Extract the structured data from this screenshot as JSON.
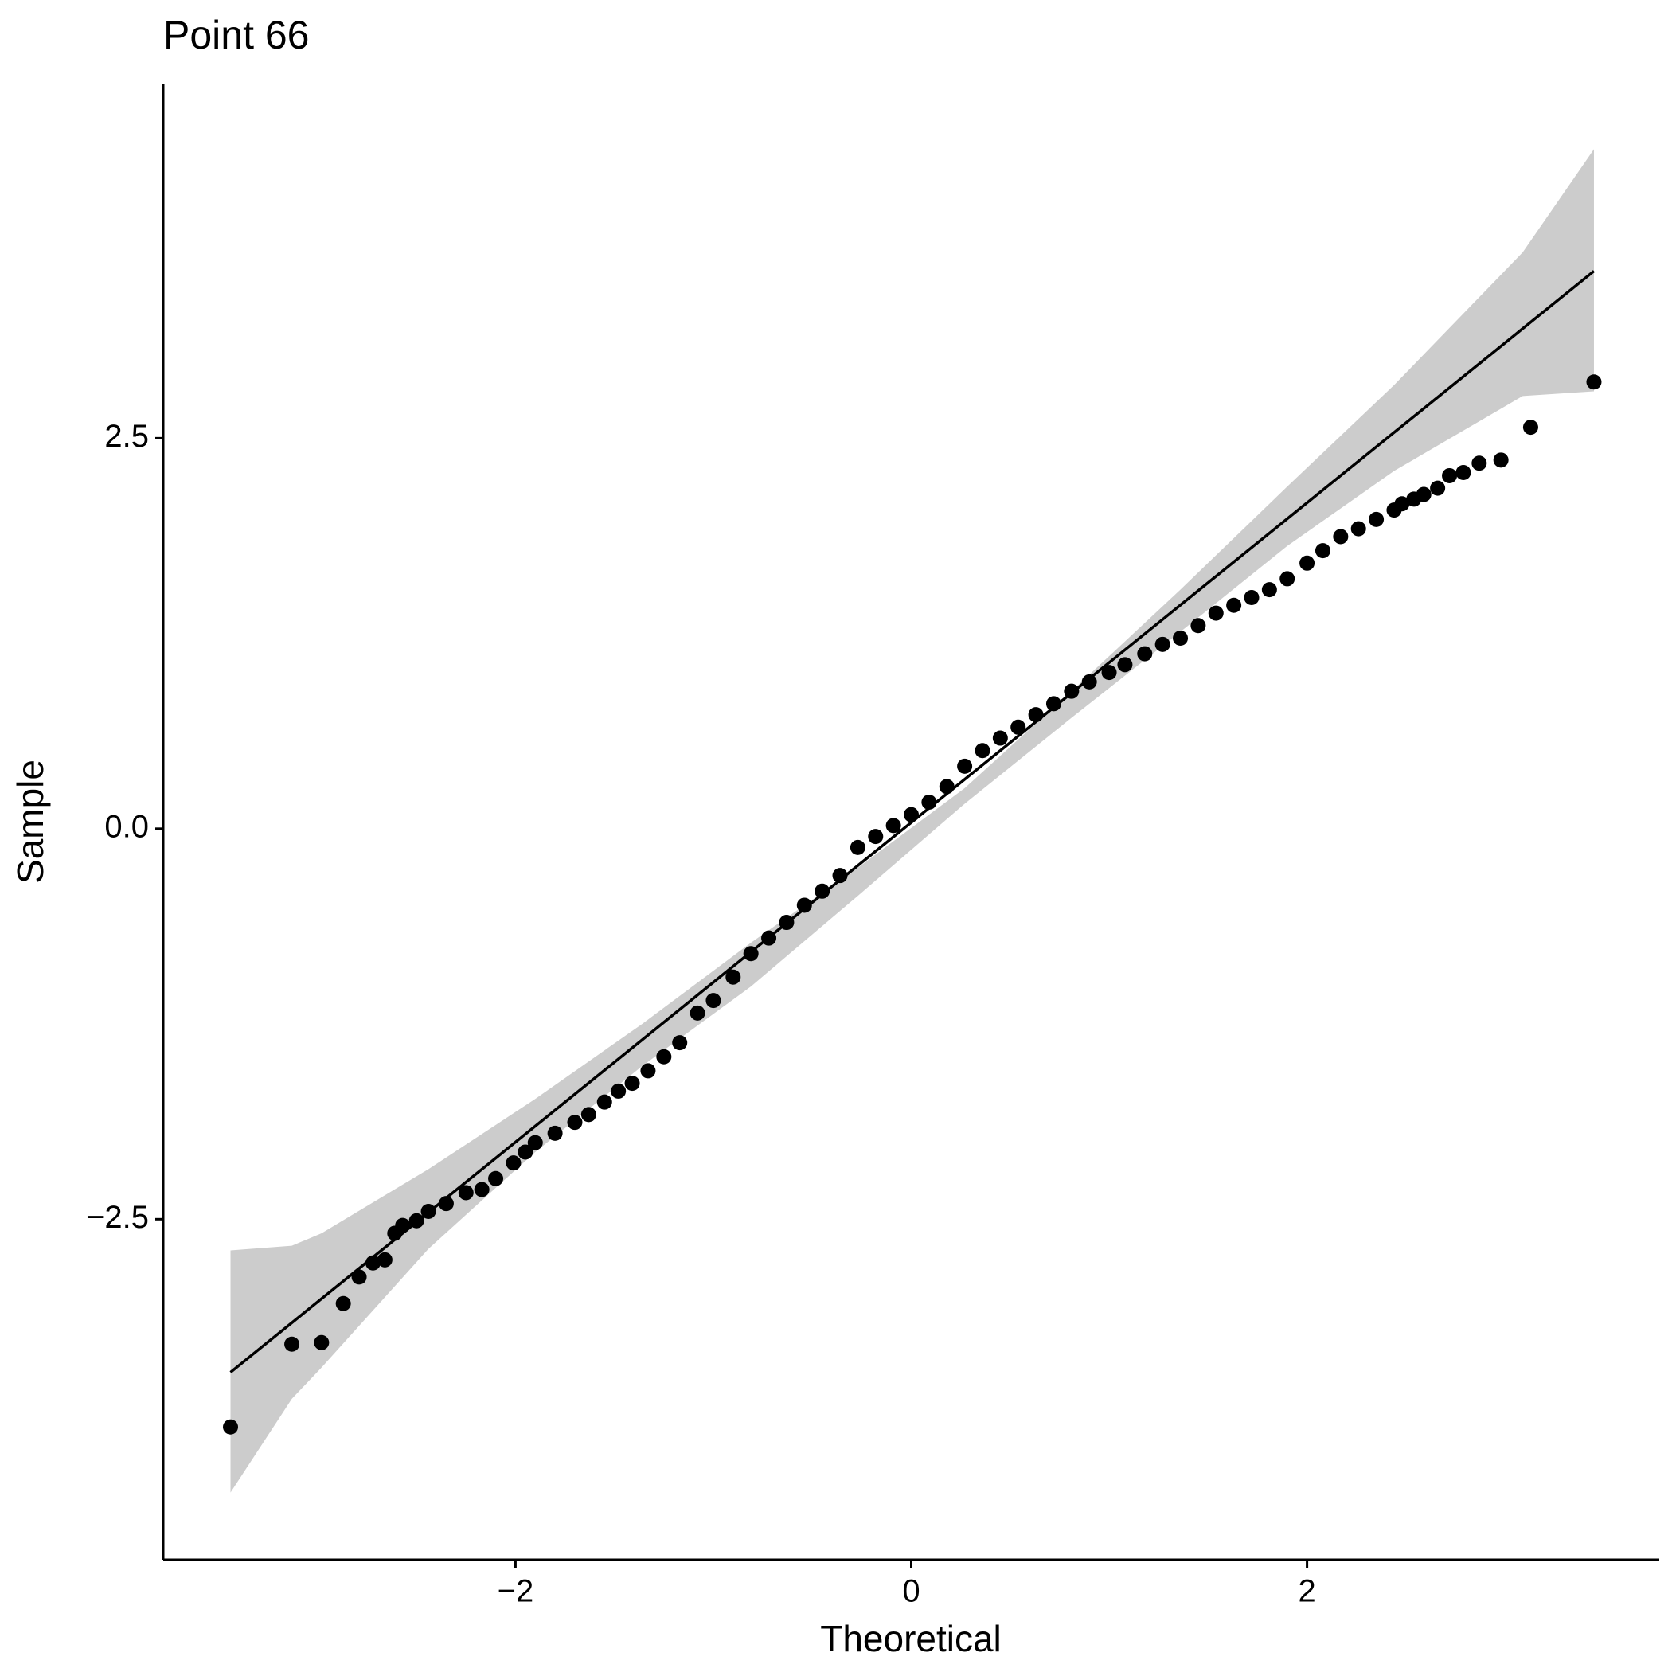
{
  "chart_data": {
    "type": "scatter",
    "title": "Point 66",
    "x_label": "Theoretical",
    "y_label": "Sample",
    "x": [
      -3.44,
      -3.13,
      -2.98,
      -2.87,
      -2.79,
      -2.72,
      -2.66,
      -2.61,
      -2.57,
      -2.5,
      -2.44,
      -2.35,
      -2.25,
      -2.17,
      -2.1,
      -2.01,
      -1.95,
      -1.9,
      -1.8,
      -1.7,
      -1.63,
      -1.55,
      -1.48,
      -1.41,
      -1.33,
      -1.25,
      -1.17,
      -1.08,
      -1.0,
      -0.9,
      -0.81,
      -0.72,
      -0.63,
      -0.54,
      -0.45,
      -0.36,
      -0.27,
      -0.18,
      -0.09,
      0,
      0.09,
      0.18,
      0.27,
      0.36,
      0.45,
      0.54,
      0.63,
      0.72,
      0.81,
      0.9,
      1.0,
      1.08,
      1.18,
      1.27,
      1.36,
      1.45,
      1.54,
      1.63,
      1.72,
      1.81,
      1.9,
      2.0,
      2.08,
      2.17,
      2.26,
      2.35,
      2.44,
      2.48,
      2.54,
      2.59,
      2.66,
      2.72,
      2.79,
      2.87,
      2.98,
      3.13,
      3.45
    ],
    "y": [
      -3.83,
      -3.3,
      -3.29,
      -3.04,
      -2.87,
      -2.78,
      -2.76,
      -2.59,
      -2.54,
      -2.51,
      -2.45,
      -2.4,
      -2.33,
      -2.31,
      -2.24,
      -2.14,
      -2.07,
      -2.01,
      -1.95,
      -1.88,
      -1.83,
      -1.75,
      -1.68,
      -1.63,
      -1.55,
      -1.46,
      -1.37,
      -1.18,
      -1.1,
      -0.95,
      -0.8,
      -0.7,
      -0.6,
      -0.49,
      -0.4,
      -0.3,
      -0.12,
      -0.05,
      0.02,
      0.09,
      0.17,
      0.27,
      0.4,
      0.5,
      0.58,
      0.65,
      0.73,
      0.8,
      0.88,
      0.94,
      1.0,
      1.05,
      1.12,
      1.18,
      1.22,
      1.3,
      1.38,
      1.43,
      1.48,
      1.53,
      1.6,
      1.7,
      1.78,
      1.87,
      1.92,
      1.98,
      2.04,
      2.08,
      2.11,
      2.14,
      2.18,
      2.26,
      2.28,
      2.34,
      2.36,
      2.57,
      2.86
    ],
    "color": "#000000",
    "reference_line": {
      "x": [
        -3.44,
        3.45
      ],
      "y": [
        -3.48,
        3.57
      ],
      "color": "#000000"
    },
    "band": {
      "x": [
        -3.44,
        -3.13,
        -2.98,
        -2.44,
        -1.9,
        -1.36,
        -0.81,
        -0.27,
        0.27,
        0.81,
        1.36,
        1.9,
        2.44,
        3.09,
        3.45
      ],
      "lower": [
        -4.25,
        -3.65,
        -3.45,
        -2.69,
        -2.07,
        -1.52,
        -1.01,
        -0.43,
        0.16,
        0.71,
        1.26,
        1.81,
        2.29,
        2.77,
        2.8
      ],
      "upper": [
        -2.7,
        -2.67,
        -2.59,
        -2.18,
        -1.73,
        -1.25,
        -0.73,
        -0.25,
        0.26,
        0.88,
        1.53,
        2.19,
        2.84,
        3.69,
        4.35
      ],
      "color": "#cccccc"
    },
    "xlim": [
      -3.78,
      3.78
    ],
    "ylim": [
      -4.68,
      4.77
    ],
    "xticks": [
      {
        "value": -2,
        "label": "−2"
      },
      0,
      2
    ],
    "yticks": [
      {
        "value": -2.5,
        "label": "−2.5"
      },
      {
        "value": 0,
        "label": "0.0"
      },
      2.5
    ]
  }
}
